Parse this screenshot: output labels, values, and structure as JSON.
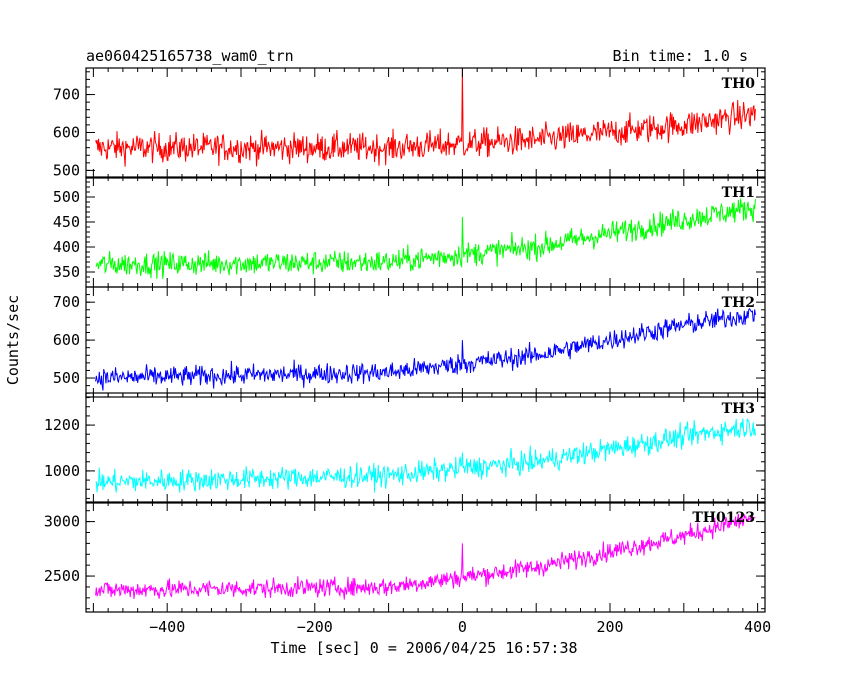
{
  "header": {
    "title": "ae060425165738_wam0_trn",
    "bin_time": "Bin time: 1.0 s"
  },
  "chart_data": {
    "type": "line",
    "xlabel": "Time [sec] 0 = 2006/04/25 16:57:38",
    "ylabel": "Counts/sec",
    "xlim": [
      -510,
      410
    ],
    "xticks": [
      -400,
      -200,
      0,
      200,
      400
    ],
    "x_tick_labels": [
      "−400",
      "−200",
      "0",
      "200",
      "400"
    ],
    "panels": [
      {
        "name": "TH0",
        "color": "#ff0000",
        "ylim": [
          480,
          770
        ],
        "yticks": [
          500,
          600,
          700
        ],
        "y_tick_labels": [
          "500",
          "600",
          "700"
        ],
        "trend_x": [
          -500,
          -100,
          100,
          300,
          400
        ],
        "trend_y": [
          560,
          560,
          580,
          620,
          650
        ],
        "noise": 35,
        "spike": {
          "x": 0,
          "y": 770
        }
      },
      {
        "name": "TH1",
        "color": "#00ff00",
        "ylim": [
          320,
          540
        ],
        "yticks": [
          350,
          400,
          450,
          500
        ],
        "y_tick_labels": [
          "350",
          "400",
          "450",
          "500"
        ],
        "trend_x": [
          -500,
          -100,
          100,
          300,
          400
        ],
        "trend_y": [
          365,
          370,
          400,
          455,
          480
        ],
        "noise": 22,
        "spike": {
          "x": 0,
          "y": 460
        }
      },
      {
        "name": "TH2",
        "color": "#0000ff",
        "ylim": [
          450,
          740
        ],
        "yticks": [
          500,
          600,
          700
        ],
        "y_tick_labels": [
          "500",
          "600",
          "700"
        ],
        "trend_x": [
          -500,
          -100,
          100,
          300,
          400
        ],
        "trend_y": [
          500,
          515,
          560,
          640,
          670
        ],
        "noise": 25,
        "spike": {
          "x": 0,
          "y": 600
        }
      },
      {
        "name": "TH3",
        "color": "#00ffff",
        "ylim": [
          860,
          1340
        ],
        "yticks": [
          1000,
          1200
        ],
        "y_tick_labels": [
          "1000",
          "1200"
        ],
        "trend_x": [
          -500,
          -100,
          100,
          300,
          400
        ],
        "trend_y": [
          950,
          980,
          1040,
          1150,
          1200
        ],
        "noise": 45,
        "spike": {
          "x": 0,
          "y": 1080
        }
      },
      {
        "name": "TH0123",
        "color": "#ff00ff",
        "ylim": [
          2170,
          3180
        ],
        "yticks": [
          2500,
          3000
        ],
        "y_tick_labels": [
          "2500",
          "3000"
        ],
        "trend_x": [
          -500,
          -100,
          100,
          300,
          400
        ],
        "trend_y": [
          2370,
          2400,
          2580,
          2870,
          3050
        ],
        "noise": 80,
        "spike": {
          "x": 0,
          "y": 2800
        }
      }
    ]
  }
}
